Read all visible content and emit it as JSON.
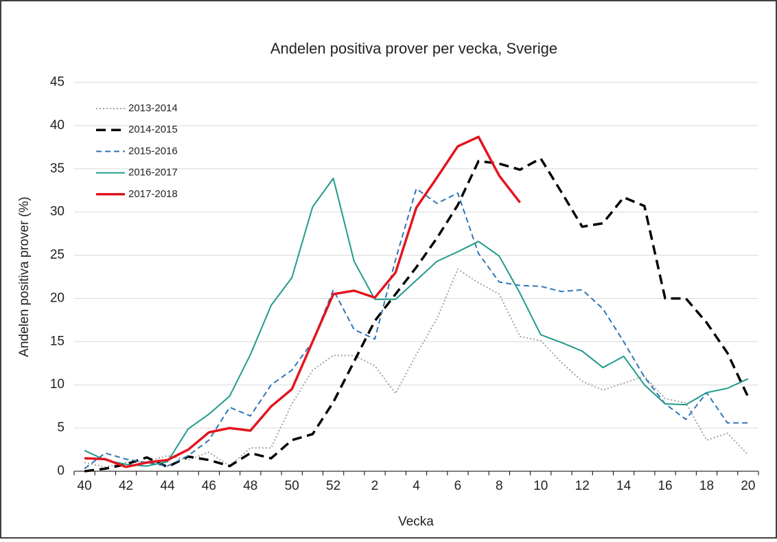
{
  "chart_data": {
    "type": "line",
    "title": "Andelen positiva prover per vecka, Sverige",
    "x_label": "Vecka",
    "y_label": "Andelen positiva prover (%)",
    "categories": [
      40,
      null,
      42,
      null,
      44,
      null,
      46,
      null,
      48,
      null,
      50,
      null,
      52,
      null,
      2,
      null,
      4,
      null,
      6,
      null,
      8,
      null,
      10,
      null,
      12,
      null,
      14,
      null,
      16,
      null,
      18,
      null,
      20
    ],
    "ylim": [
      0,
      45
    ],
    "yticks": [
      0,
      5,
      10,
      15,
      20,
      25,
      30,
      35,
      40,
      45
    ],
    "grid": true,
    "legend": "upper left",
    "series": [
      {
        "name": "2013-2014",
        "color": "#a0a0a0",
        "style": "dotted",
        "values": [
          1.0,
          0.5,
          1.0,
          1.1,
          1.8,
          1.3,
          2.2,
          0.6,
          2.7,
          2.7,
          7.8,
          11.7,
          13.4,
          13.4,
          12.2,
          9.0,
          13.5,
          17.7,
          23.4,
          21.8,
          20.5,
          15.6,
          15.1,
          12.6,
          10.4,
          9.4,
          10.2,
          11.0,
          8.4,
          7.9,
          3.6,
          4.4,
          1.9
        ]
      },
      {
        "name": "2014-2015",
        "color": "#000000",
        "style": "dashed",
        "values": [
          0.0,
          0.3,
          0.8,
          1.6,
          0.5,
          1.7,
          1.3,
          0.6,
          2.1,
          1.5,
          3.6,
          4.3,
          8.0,
          12.7,
          17.4,
          20.5,
          23.6,
          27.0,
          30.8,
          35.9,
          35.6,
          34.9,
          36.2,
          32.3,
          28.3,
          28.7,
          31.7,
          30.7,
          20.0,
          20.0,
          17.2,
          13.7,
          8.6
        ]
      },
      {
        "name": "2015-2016",
        "color": "#2e75b6",
        "style": "dashed",
        "values": [
          0.3,
          2.1,
          1.4,
          1.0,
          0.6,
          1.8,
          3.6,
          7.4,
          6.4,
          10.0,
          11.7,
          15.0,
          21.0,
          16.4,
          15.3,
          24.5,
          32.7,
          31.0,
          32.2,
          25.2,
          21.9,
          21.5,
          21.4,
          20.8,
          21.0,
          18.8,
          15.0,
          10.9,
          7.8,
          6.0,
          9.1,
          5.6,
          5.6
        ]
      },
      {
        "name": "2016-2017",
        "color": "#1f9a8a",
        "style": "solid",
        "values": [
          2.4,
          1.3,
          0.8,
          0.6,
          1.1,
          4.9,
          6.6,
          8.7,
          13.5,
          19.2,
          22.4,
          30.6,
          33.9,
          24.3,
          19.9,
          19.9,
          22.1,
          24.3,
          25.4,
          26.6,
          24.9,
          20.6,
          15.8,
          14.9,
          13.9,
          12.0,
          13.3,
          10.0,
          7.8,
          7.7,
          9.1,
          9.6,
          10.7
        ]
      },
      {
        "name": "2017-2018",
        "color": "#e3141f",
        "style": "solid",
        "values": [
          1.5,
          1.4,
          0.5,
          1.0,
          1.3,
          2.5,
          4.5,
          5.0,
          4.7,
          7.5,
          9.5,
          15.0,
          20.5,
          20.9,
          20.1,
          23.0,
          30.5,
          34.0,
          37.6,
          38.7,
          34.2,
          31.1,
          null,
          null,
          null,
          null,
          null,
          null,
          null,
          null,
          null,
          null,
          null
        ]
      }
    ]
  }
}
